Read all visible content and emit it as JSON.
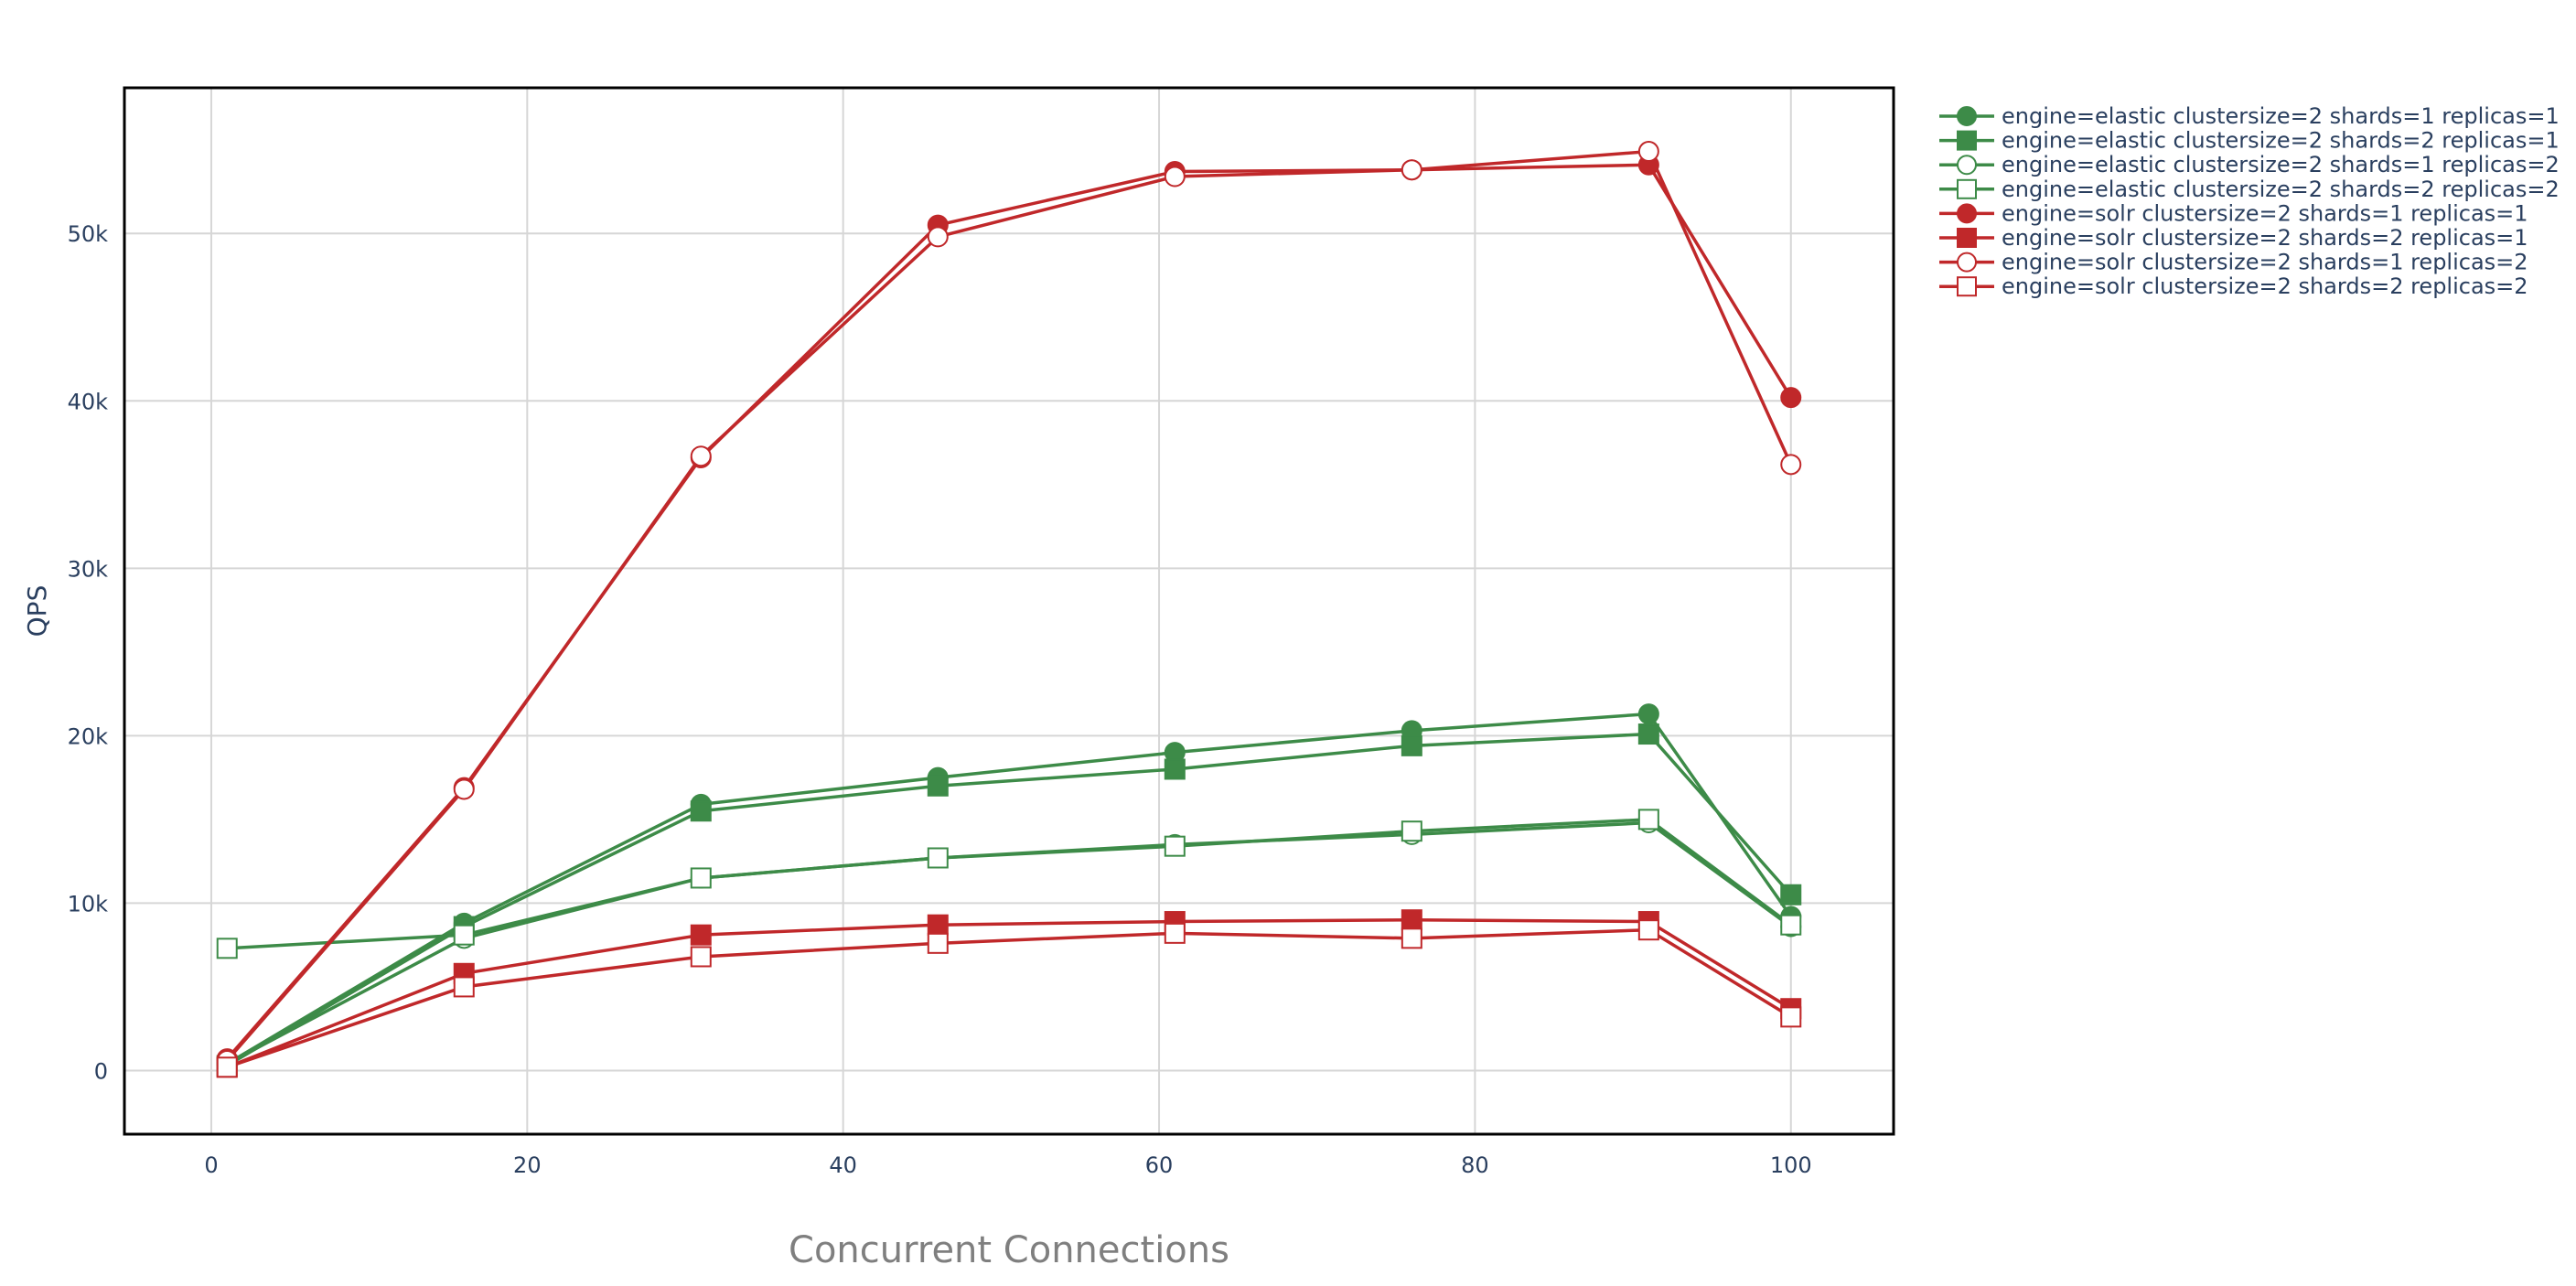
{
  "chart_data": {
    "type": "line",
    "title": "",
    "xlabel": "Concurrent Connections",
    "ylabel": "QPS",
    "xlim": [
      -5.5,
      106.5
    ],
    "ylim": [
      -3800,
      58700
    ],
    "x_ticks": [
      0,
      20,
      40,
      60,
      80,
      100
    ],
    "x_tick_labels": [
      "0",
      "20",
      "40",
      "60",
      "80",
      "100"
    ],
    "y_ticks": [
      0,
      10000,
      20000,
      30000,
      40000,
      50000
    ],
    "y_tick_labels": [
      "0",
      "10k",
      "20k",
      "30k",
      "40k",
      "50k"
    ],
    "grid": true,
    "legend_position": "right",
    "colors": {
      "elastic": "#3d8b48",
      "solr": "#c0282a",
      "grid": "#d6d6d6",
      "frame": "#000000"
    },
    "series": [
      {
        "name": "engine=elastic clustersize=2 shards=1 replicas=1",
        "color": "#3d8b48",
        "marker": "circle",
        "filled": true,
        "x": [
          1,
          16,
          31,
          46,
          61,
          76,
          91,
          100
        ],
        "y": [
          400,
          8800,
          15900,
          17500,
          19000,
          20300,
          21300,
          9200
        ]
      },
      {
        "name": "engine=elastic clustersize=2 shards=2 replicas=1",
        "color": "#3d8b48",
        "marker": "square",
        "filled": true,
        "x": [
          1,
          16,
          31,
          46,
          61,
          76,
          91,
          100
        ],
        "y": [
          300,
          8600,
          15500,
          17000,
          18000,
          19400,
          20100,
          10500
        ]
      },
      {
        "name": "engine=elastic clustersize=2 shards=1 replicas=2",
        "color": "#3d8b48",
        "marker": "circle",
        "filled": false,
        "x": [
          1,
          16,
          31,
          46,
          61,
          76,
          91,
          100
        ],
        "y": [
          400,
          7900,
          11500,
          12700,
          13500,
          14100,
          14800,
          8600
        ]
      },
      {
        "name": "engine=elastic clustersize=2 shards=2 replicas=2",
        "color": "#3d8b48",
        "marker": "square",
        "filled": false,
        "x": [
          1,
          16,
          31,
          46,
          61,
          76,
          91,
          100
        ],
        "y": [
          7300,
          8100,
          11500,
          12700,
          13400,
          14300,
          15000,
          8700
        ]
      },
      {
        "name": "engine=solr clustersize=2 shards=1 replicas=1",
        "color": "#c0282a",
        "marker": "circle",
        "filled": true,
        "x": [
          1,
          16,
          31,
          46,
          61,
          76,
          91,
          100
        ],
        "y": [
          700,
          16900,
          36600,
          50500,
          53700,
          53800,
          54100,
          40200
        ]
      },
      {
        "name": "engine=solr clustersize=2 shards=2 replicas=1",
        "color": "#c0282a",
        "marker": "square",
        "filled": true,
        "x": [
          1,
          16,
          31,
          46,
          61,
          76,
          91,
          100
        ],
        "y": [
          200,
          5800,
          8100,
          8700,
          8900,
          9000,
          8900,
          3700
        ]
      },
      {
        "name": "engine=solr clustersize=2 shards=1 replicas=2",
        "color": "#c0282a",
        "marker": "circle",
        "filled": false,
        "x": [
          1,
          16,
          31,
          46,
          61,
          76,
          91,
          100
        ],
        "y": [
          600,
          16800,
          36700,
          49800,
          53400,
          53800,
          54900,
          36200
        ]
      },
      {
        "name": "engine=solr clustersize=2 shards=2 replicas=2",
        "color": "#c0282a",
        "marker": "square",
        "filled": false,
        "x": [
          1,
          16,
          31,
          46,
          61,
          76,
          91,
          100
        ],
        "y": [
          200,
          5000,
          6800,
          7600,
          8200,
          7900,
          8400,
          3200
        ]
      }
    ]
  }
}
